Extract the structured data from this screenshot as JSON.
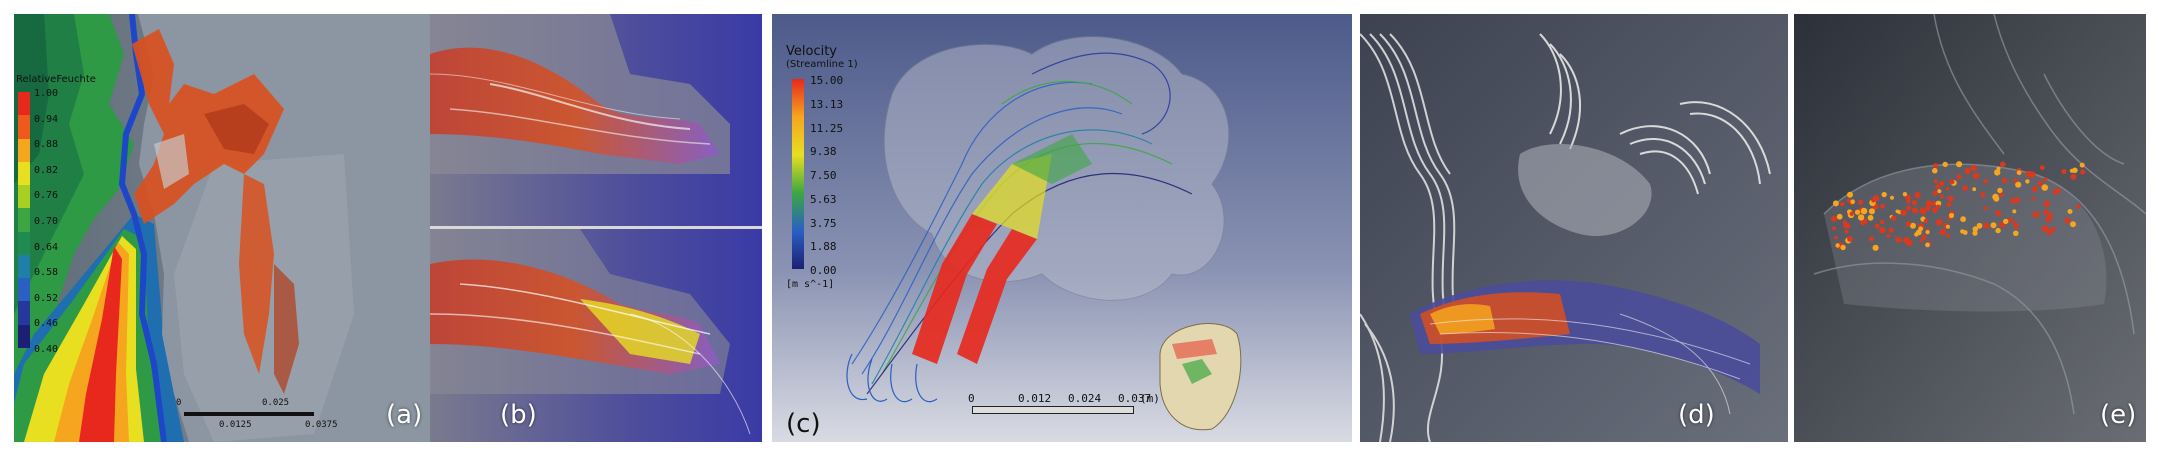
{
  "panels": {
    "a": {
      "label": "(a)",
      "legend_title": "RelativeFeuchte",
      "legend_ticks": [
        "1.00",
        "0.94",
        "0.88",
        "0.82",
        "0.76",
        "0.70",
        "0.64",
        "0.58",
        "0.52",
        "0.46",
        "0.40"
      ],
      "legend_colors": [
        "#e8281c",
        "#ef5a1c",
        "#f6a51f",
        "#e7df20",
        "#a9cf22",
        "#3da642",
        "#1f8a52",
        "#1f7fa8",
        "#2a5fc4",
        "#27389d",
        "#1d1f74"
      ],
      "scale_labels": [
        "0",
        "0.0125",
        "0.025",
        "0.0375"
      ]
    },
    "b": {
      "label": "(b)"
    },
    "c": {
      "label": "(c)",
      "legend_title": "Velocity",
      "legend_subtitle": "Streamline 1",
      "legend_ticks": [
        "15.00",
        "13.13",
        "11.25",
        "9.38",
        "7.50",
        "5.63",
        "3.75",
        "1.88",
        "0.00"
      ],
      "legend_unit": "[m s^-1]",
      "scale_labels": [
        "0",
        "0.012",
        "0.024",
        "0.037"
      ],
      "scale_unit": "(m)"
    },
    "d": {
      "label": "(d)"
    },
    "e": {
      "label": "(e)"
    }
  },
  "colors": {
    "hot": "#e8281c",
    "warm": "#f6a51f",
    "cool": "#2a5fc4",
    "particle": "#d93a1f"
  }
}
